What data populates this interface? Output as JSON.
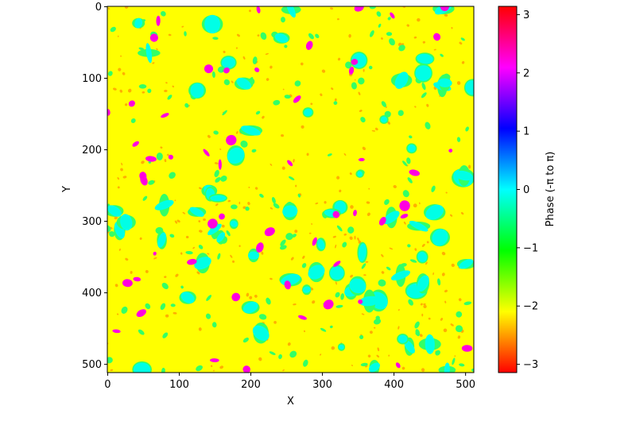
{
  "chart_data": {
    "type": "heatmap",
    "title": "",
    "xlabel": "X",
    "ylabel": "Y",
    "xlim": [
      0,
      511
    ],
    "ylim": [
      511,
      0
    ],
    "grid_size": 512,
    "x_ticks": [
      0,
      100,
      200,
      300,
      400,
      500
    ],
    "y_ticks": [
      0,
      100,
      200,
      300,
      400,
      500
    ],
    "colormap": "hsv",
    "colorbar": {
      "label": "Phase (-π to π)",
      "range": [
        -3.14159,
        3.14159
      ],
      "ticks": [
        3,
        2,
        1,
        0,
        -1,
        -2,
        -3
      ],
      "tick_labels": [
        "3",
        "2",
        "1",
        "0",
        "−1",
        "−2",
        "−3"
      ]
    },
    "dominant_value": -2.1,
    "background_color": "#ffff00",
    "blob_colors": {
      "cyan": "#00ffe6",
      "green": "#33ff66",
      "magenta": "#ff00e0",
      "orange": "#ffb000"
    }
  }
}
